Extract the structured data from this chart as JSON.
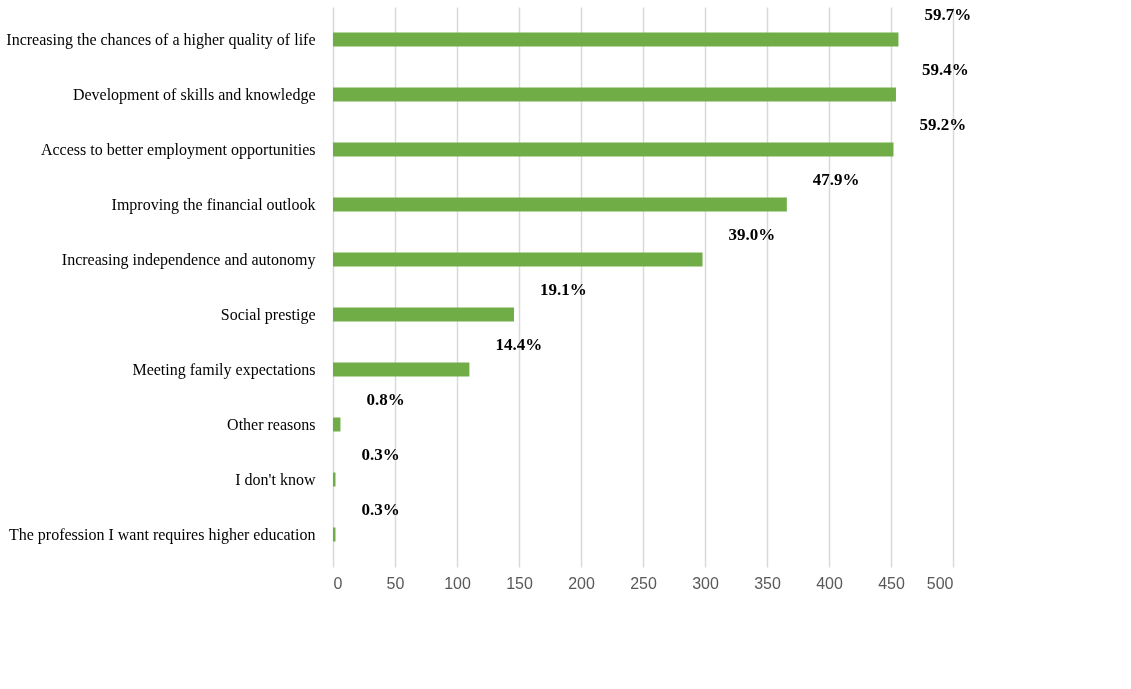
{
  "chart_data": {
    "type": "bar",
    "orientation": "horizontal",
    "categories": [
      "Increasing the chances of a higher quality of life",
      "Development of skills and knowledge",
      "Access to better employment opportunities",
      "Improving the financial outlook",
      "Increasing independence and autonomy",
      "Social prestige",
      "Meeting family expectations",
      "Other reasons",
      "I don't know",
      "The profession I want requires higher education"
    ],
    "values": [
      456,
      454,
      452,
      366,
      298,
      146,
      110,
      6,
      2,
      2
    ],
    "annotations": [
      {
        "text": "59.7%",
        "x": 456,
        "y": "Increasing the chances of a higher quality of life"
      },
      {
        "text": "59.4%",
        "x": 454,
        "y": "Development of skills and knowledge"
      },
      {
        "text": "59.2%",
        "x": 452,
        "y": "Access to better employment opportunities"
      },
      {
        "text": "47.9%",
        "x": 366,
        "y": "Improving the financial outlook"
      },
      {
        "text": "39.0%",
        "x": 298,
        "y": "Increasing independence and autonomy"
      },
      {
        "text": "19.1%",
        "x": 146,
        "y": "Social prestige"
      },
      {
        "text": "14.4%",
        "x": 110,
        "y": "Meeting family expectations"
      },
      {
        "text": "0.8%",
        "x": 6,
        "y": "Other reasons"
      },
      {
        "text": "0.3%",
        "x": 2,
        "y": "I don't know"
      },
      {
        "text": "0.3%",
        "x": 2,
        "y": "The profession I want requires higher education"
      }
    ],
    "color": "#70ad47",
    "xlim": [
      0,
      500
    ],
    "xticks": [
      0,
      50,
      100,
      150,
      200,
      250,
      300,
      350,
      400,
      450,
      500
    ],
    "grid": "x"
  }
}
